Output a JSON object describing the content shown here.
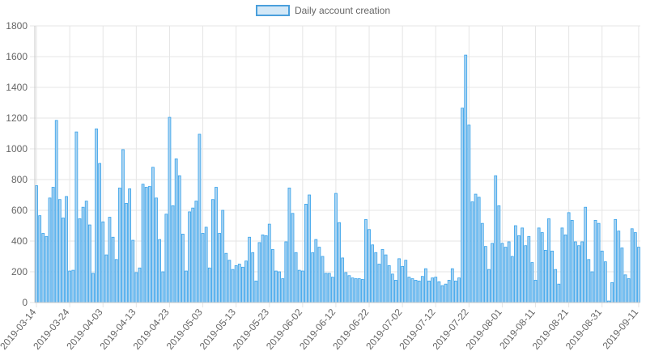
{
  "chart_data": {
    "type": "bar",
    "legend": {
      "label": "Daily account creation",
      "position": "top"
    },
    "colors": {
      "bar_fill": "#a9d2f0",
      "bar_stroke": "#36a2eb",
      "grid": "#e5e5e5",
      "text": "#666666"
    },
    "grid": true,
    "ylim": [
      0,
      1800
    ],
    "yticks": [
      0,
      200,
      400,
      600,
      800,
      1000,
      1200,
      1400,
      1600,
      1800
    ],
    "x_tick_labels": [
      "2019-03-14",
      "2019-03-24",
      "2019-04-03",
      "2019-04-13",
      "2019-04-23",
      "2019-05-03",
      "2019-05-13",
      "2019-05-23",
      "2019-06-02",
      "2019-06-12",
      "2019-06-22",
      "2019-07-02",
      "2019-07-12",
      "2019-07-22",
      "2019-08-01",
      "2019-08-11",
      "2019-08-21",
      "2019-08-31",
      "2019-09-11"
    ],
    "x_start": "2019-03-14",
    "x_end": "2019-09-11",
    "values": [
      760,
      565,
      450,
      430,
      680,
      750,
      1185,
      670,
      550,
      690,
      205,
      210,
      1110,
      545,
      620,
      660,
      505,
      190,
      1130,
      905,
      525,
      310,
      555,
      425,
      280,
      745,
      995,
      645,
      740,
      405,
      195,
      225,
      770,
      750,
      755,
      880,
      680,
      410,
      200,
      575,
      1205,
      630,
      935,
      825,
      445,
      205,
      590,
      615,
      660,
      1095,
      450,
      490,
      225,
      670,
      750,
      450,
      600,
      320,
      275,
      215,
      240,
      250,
      230,
      270,
      425,
      325,
      140,
      390,
      440,
      435,
      510,
      345,
      205,
      200,
      155,
      395,
      745,
      580,
      325,
      210,
      205,
      640,
      700,
      325,
      410,
      360,
      300,
      190,
      190,
      165,
      710,
      520,
      290,
      195,
      175,
      160,
      155,
      155,
      150,
      540,
      475,
      375,
      325,
      250,
      345,
      310,
      240,
      185,
      145,
      285,
      235,
      275,
      165,
      155,
      145,
      140,
      170,
      220,
      140,
      160,
      165,
      135,
      110,
      120,
      145,
      220,
      140,
      160,
      1265,
      1610,
      1155,
      655,
      705,
      685,
      515,
      365,
      215,
      385,
      825,
      630,
      385,
      360,
      395,
      300,
      500,
      435,
      485,
      370,
      430,
      260,
      145,
      485,
      455,
      340,
      545,
      335,
      215,
      120,
      485,
      440,
      585,
      535,
      395,
      370,
      395,
      620,
      280,
      200,
      535,
      515,
      335,
      265,
      10,
      130,
      540,
      465,
      355,
      180,
      155,
      480,
      455,
      360
    ]
  }
}
